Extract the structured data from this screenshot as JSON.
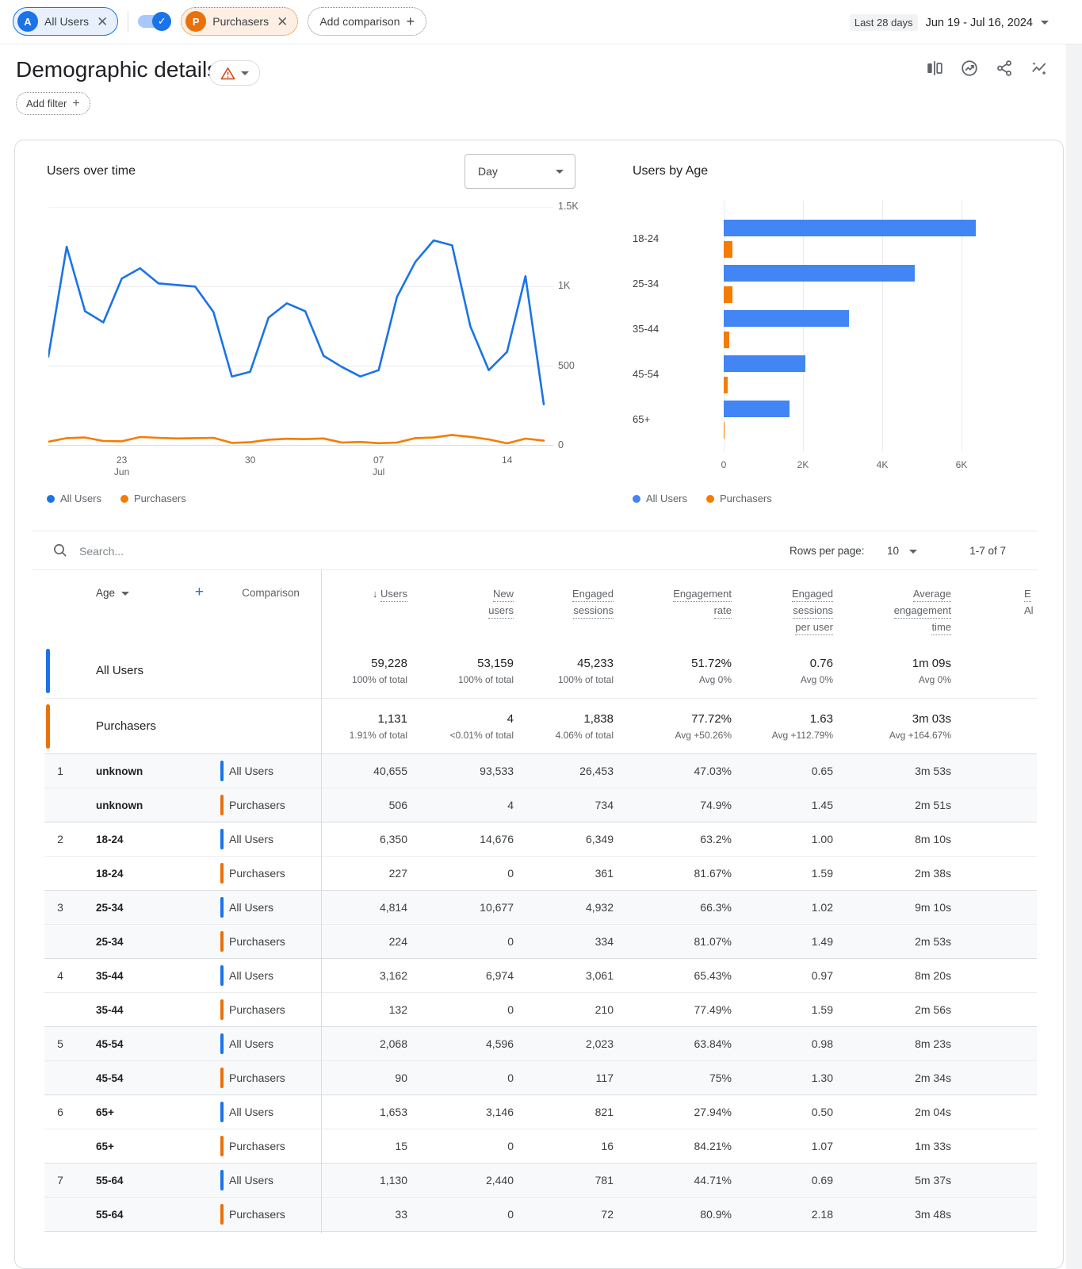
{
  "colors": {
    "blue": "#1a73e8",
    "bar_blue": "#4285f4",
    "orange": "#e8710a",
    "chart_orange": "#f57c00",
    "row_shade": "#f8f9fa",
    "warning": "#d14817"
  },
  "topbar": {
    "chip_all_users": "All Users",
    "chip_all_users_avatar": "A",
    "chip_purchasers": "Purchasers",
    "chip_purchasers_avatar": "P",
    "add_comparison": "Add comparison",
    "date_preset": "Last 28 days",
    "date_range": "Jun 19 - Jul 16, 2024"
  },
  "header": {
    "title": "Demographic details",
    "add_filter": "Add filter",
    "icons": [
      "ab-compare",
      "insights",
      "share",
      "trend-sparkle"
    ]
  },
  "chart_data": [
    {
      "type": "line",
      "title": "Users over time",
      "interval_selector": "Day",
      "legend": [
        "All Users",
        "Purchasers"
      ],
      "ylim": [
        0,
        1500
      ],
      "y_ticks": [
        "1.5K",
        "1K",
        "500",
        "0"
      ],
      "y_tick_values": [
        1500,
        1000,
        500,
        0
      ],
      "x_ticks": [
        {
          "index": 4,
          "lines": [
            "23",
            "Jun"
          ]
        },
        {
          "index": 11,
          "lines": [
            "30"
          ]
        },
        {
          "index": 18,
          "lines": [
            "07",
            "Jul"
          ]
        },
        {
          "index": 25,
          "lines": [
            "14"
          ]
        }
      ],
      "series": [
        {
          "name": "All Users",
          "color": "#1a73e8",
          "values": [
            560,
            1250,
            845,
            775,
            1050,
            1115,
            1020,
            1010,
            1000,
            840,
            435,
            465,
            805,
            895,
            845,
            565,
            495,
            435,
            475,
            935,
            1155,
            1290,
            1260,
            750,
            475,
            590,
            1065,
            260
          ]
        },
        {
          "name": "Purchasers",
          "color": "#f57c00",
          "values": [
            25,
            48,
            52,
            30,
            28,
            55,
            50,
            46,
            48,
            50,
            18,
            22,
            38,
            44,
            42,
            46,
            20,
            24,
            16,
            20,
            48,
            52,
            68,
            56,
            40,
            15,
            45,
            32
          ]
        }
      ]
    },
    {
      "type": "bar",
      "title": "Users by Age",
      "orientation": "horizontal",
      "categories": [
        "18-24",
        "25-34",
        "35-44",
        "45-54",
        "65+"
      ],
      "x_ticks": [
        "0",
        "2K",
        "4K",
        "6K"
      ],
      "x_tick_value_step": 2000,
      "xlim": [
        0,
        7800
      ],
      "legend": [
        "All Users",
        "Purchasers"
      ],
      "series": [
        {
          "name": "All Users",
          "color": "#4285f4",
          "values": [
            6350,
            4814,
            3162,
            2068,
            1653
          ]
        },
        {
          "name": "Purchasers",
          "color": "#f57c00",
          "values": [
            227,
            224,
            132,
            90,
            15
          ]
        }
      ]
    }
  ],
  "table": {
    "search_placeholder": "Search...",
    "rows_per_page_label": "Rows per page:",
    "rows_per_page_value": "10",
    "pagination": "1-7 of 7",
    "dimension_header": "Age",
    "comparison_header": "Comparison",
    "sort_arrow": "↓",
    "columns": [
      {
        "lines": [
          "Users"
        ],
        "sorted": true
      },
      {
        "lines": [
          "New",
          "users"
        ]
      },
      {
        "lines": [
          "Engaged",
          "sessions"
        ]
      },
      {
        "lines": [
          "Engagement",
          "rate"
        ]
      },
      {
        "lines": [
          "Engaged",
          "sessions",
          "per user"
        ]
      },
      {
        "lines": [
          "Average",
          "engagement",
          "time"
        ]
      },
      {
        "lines": [
          "E",
          "Al"
        ],
        "clipped": true
      }
    ],
    "summary_rows": [
      {
        "label": "All Users",
        "segment": "All Users",
        "values": [
          [
            "59,228",
            "100% of total"
          ],
          [
            "53,159",
            "100% of total"
          ],
          [
            "45,233",
            "100% of total"
          ],
          [
            "51.72%",
            "Avg 0%"
          ],
          [
            "0.76",
            "Avg 0%"
          ],
          [
            "1m 09s",
            "Avg 0%"
          ]
        ]
      },
      {
        "label": "Purchasers",
        "segment": "Purchasers",
        "values": [
          [
            "1,131",
            "1.91% of total"
          ],
          [
            "4",
            "<0.01% of total"
          ],
          [
            "1,838",
            "4.06% of total"
          ],
          [
            "77.72%",
            "Avg +50.26%"
          ],
          [
            "1.63",
            "Avg +112.79%"
          ],
          [
            "3m 03s",
            "Avg +164.67%"
          ]
        ]
      }
    ],
    "rows": [
      {
        "num": "1",
        "age": "unknown",
        "segment": "All Users",
        "values": [
          "40,655",
          "93,533",
          "26,453",
          "47.03%",
          "0.65",
          "3m 53s"
        ],
        "shade": true
      },
      {
        "num": "",
        "age": "unknown",
        "segment": "Purchasers",
        "values": [
          "506",
          "4",
          "734",
          "74.9%",
          "1.45",
          "2m 51s"
        ],
        "shade": true
      },
      {
        "num": "2",
        "age": "18-24",
        "segment": "All Users",
        "values": [
          "6,350",
          "14,676",
          "6,349",
          "63.2%",
          "1.00",
          "8m 10s"
        ],
        "shade": false
      },
      {
        "num": "",
        "age": "18-24",
        "segment": "Purchasers",
        "values": [
          "227",
          "0",
          "361",
          "81.67%",
          "1.59",
          "2m 38s"
        ],
        "shade": false
      },
      {
        "num": "3",
        "age": "25-34",
        "segment": "All Users",
        "values": [
          "4,814",
          "10,677",
          "4,932",
          "66.3%",
          "1.02",
          "9m 10s"
        ],
        "shade": true
      },
      {
        "num": "",
        "age": "25-34",
        "segment": "Purchasers",
        "values": [
          "224",
          "0",
          "334",
          "81.07%",
          "1.49",
          "2m 53s"
        ],
        "shade": true
      },
      {
        "num": "4",
        "age": "35-44",
        "segment": "All Users",
        "values": [
          "3,162",
          "6,974",
          "3,061",
          "65.43%",
          "0.97",
          "8m 20s"
        ],
        "shade": false
      },
      {
        "num": "",
        "age": "35-44",
        "segment": "Purchasers",
        "values": [
          "132",
          "0",
          "210",
          "77.49%",
          "1.59",
          "2m 56s"
        ],
        "shade": false
      },
      {
        "num": "5",
        "age": "45-54",
        "segment": "All Users",
        "values": [
          "2,068",
          "4,596",
          "2,023",
          "63.84%",
          "0.98",
          "8m 23s"
        ],
        "shade": true
      },
      {
        "num": "",
        "age": "45-54",
        "segment": "Purchasers",
        "values": [
          "90",
          "0",
          "117",
          "75%",
          "1.30",
          "2m 34s"
        ],
        "shade": true
      },
      {
        "num": "6",
        "age": "65+",
        "segment": "All Users",
        "values": [
          "1,653",
          "3,146",
          "821",
          "27.94%",
          "0.50",
          "2m 04s"
        ],
        "shade": false
      },
      {
        "num": "",
        "age": "65+",
        "segment": "Purchasers",
        "values": [
          "15",
          "0",
          "16",
          "84.21%",
          "1.07",
          "1m 33s"
        ],
        "shade": false
      },
      {
        "num": "7",
        "age": "55-64",
        "segment": "All Users",
        "values": [
          "1,130",
          "2,440",
          "781",
          "44.71%",
          "0.69",
          "5m 37s"
        ],
        "shade": true
      },
      {
        "num": "",
        "age": "55-64",
        "segment": "Purchasers",
        "values": [
          "33",
          "0",
          "72",
          "80.9%",
          "2.18",
          "3m 48s"
        ],
        "shade": true
      }
    ]
  }
}
